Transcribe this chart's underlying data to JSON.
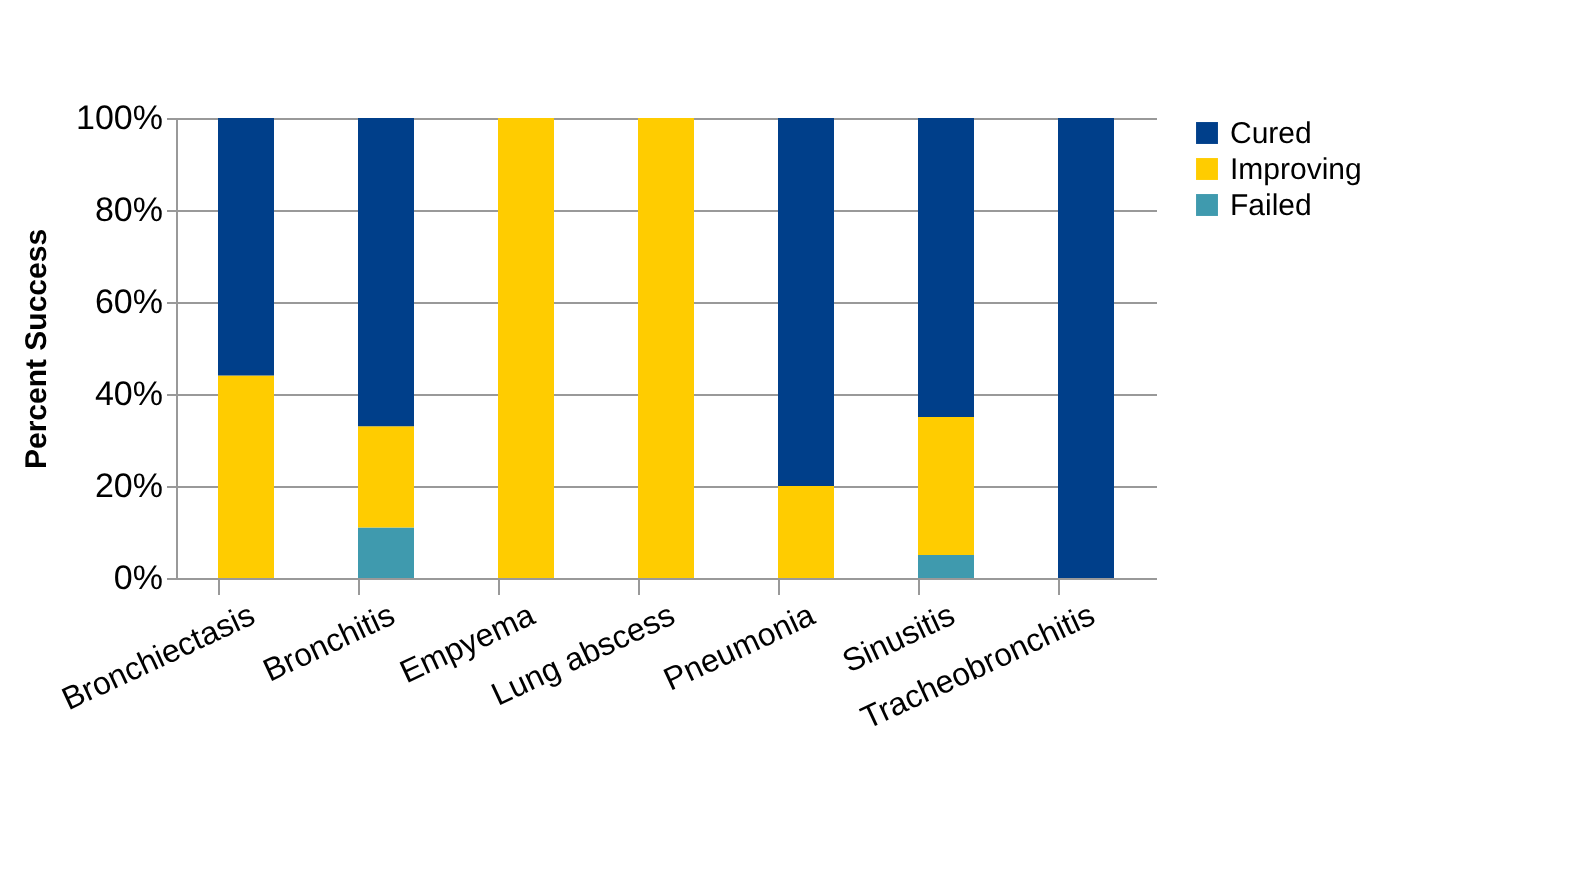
{
  "chart_data": {
    "type": "bar",
    "stacked": true,
    "ylabel": "Percent Success",
    "categories": [
      "Bronchiectasis",
      "Bronchitis",
      "Empyema",
      "Lung abscess",
      "Pneumonia",
      "Sinusitis",
      "Tracheobronchitis"
    ],
    "series": [
      {
        "name": "Failed",
        "color": "#3f9aae",
        "values": [
          0,
          11,
          0,
          0,
          0,
          5,
          0
        ]
      },
      {
        "name": "Improving",
        "color": "#ffcc00",
        "values": [
          44,
          22,
          100,
          100,
          20,
          30,
          0
        ]
      },
      {
        "name": "Cured",
        "color": "#003f8a",
        "values": [
          56,
          67,
          0,
          0,
          80,
          65,
          100
        ]
      }
    ],
    "ylim": [
      0,
      100
    ],
    "yticks": [
      {
        "value": 0,
        "label": "0%"
      },
      {
        "value": 20,
        "label": "20%"
      },
      {
        "value": 40,
        "label": "40%"
      },
      {
        "value": 60,
        "label": "60%"
      },
      {
        "value": 80,
        "label": "80%"
      },
      {
        "value": 100,
        "label": "100%"
      }
    ],
    "grid": "y",
    "legend": "right"
  }
}
